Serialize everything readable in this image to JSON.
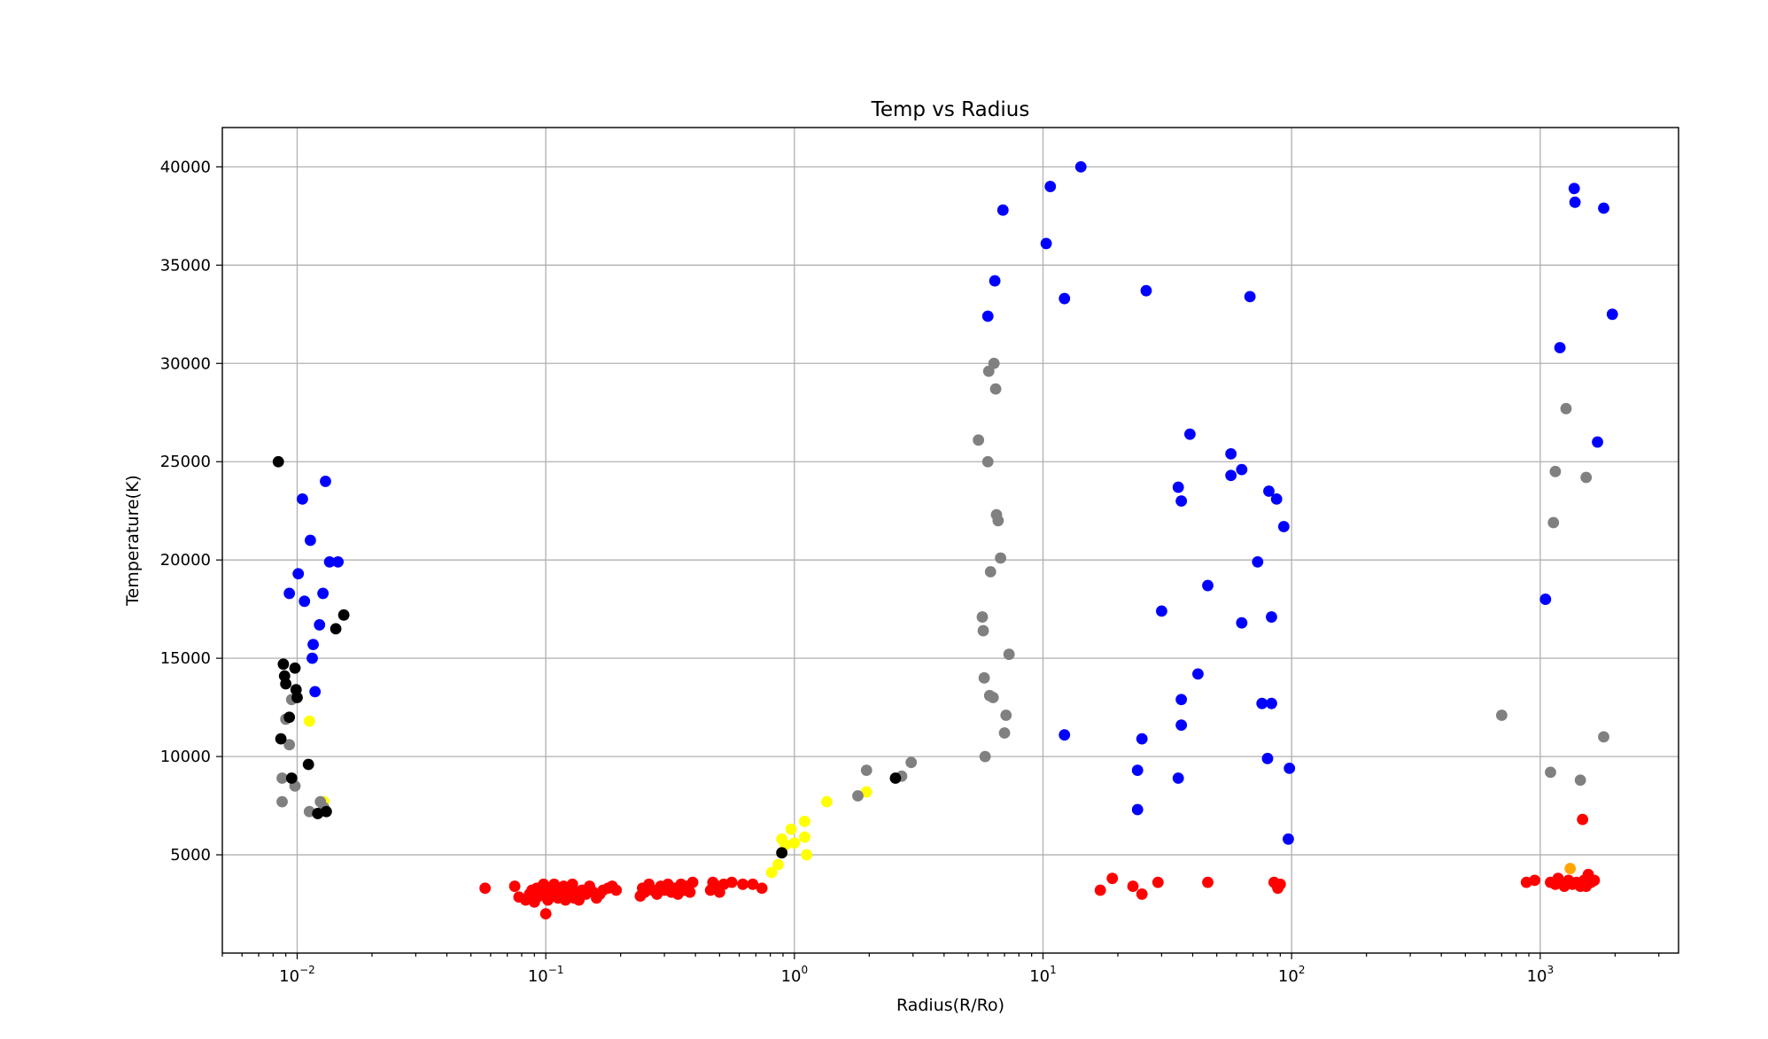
{
  "chart_data": {
    "type": "scatter",
    "title": "Temp vs Radius",
    "xlabel": "Radius(R/Ro)",
    "ylabel": "Temperature(K)",
    "xscale": "log",
    "xlim": [
      0.005,
      3600
    ],
    "ylim": [
      0,
      42000
    ],
    "x_ticks": [
      {
        "value": 0.01,
        "base": "10",
        "exp": "−2"
      },
      {
        "value": 0.1,
        "base": "10",
        "exp": "−1"
      },
      {
        "value": 1,
        "base": "10",
        "exp": "0"
      },
      {
        "value": 10,
        "base": "10",
        "exp": "1"
      },
      {
        "value": 100,
        "base": "10",
        "exp": "2"
      },
      {
        "value": 1000,
        "base": "10",
        "exp": "3"
      }
    ],
    "y_ticks": [
      {
        "value": 5000,
        "label": "5000"
      },
      {
        "value": 10000,
        "label": "10000"
      },
      {
        "value": 15000,
        "label": "15000"
      },
      {
        "value": 20000,
        "label": "20000"
      },
      {
        "value": 25000,
        "label": "25000"
      },
      {
        "value": 30000,
        "label": "30000"
      },
      {
        "value": 35000,
        "label": "35000"
      },
      {
        "value": 40000,
        "label": "40000"
      }
    ],
    "grid": true,
    "legend": "none",
    "series": [
      {
        "color": "#ff0000",
        "points": [
          [
            0.057,
            3300
          ],
          [
            0.075,
            3400
          ],
          [
            0.078,
            2850
          ],
          [
            0.083,
            2700
          ],
          [
            0.086,
            3000
          ],
          [
            0.088,
            3200
          ],
          [
            0.09,
            2600
          ],
          [
            0.092,
            3300
          ],
          [
            0.094,
            2900
          ],
          [
            0.096,
            3100
          ],
          [
            0.098,
            3500
          ],
          [
            0.1,
            2000
          ],
          [
            0.1,
            3000
          ],
          [
            0.102,
            2700
          ],
          [
            0.104,
            3300
          ],
          [
            0.106,
            2900
          ],
          [
            0.108,
            3500
          ],
          [
            0.11,
            3100
          ],
          [
            0.112,
            2800
          ],
          [
            0.115,
            3000
          ],
          [
            0.118,
            3400
          ],
          [
            0.12,
            2700
          ],
          [
            0.122,
            3200
          ],
          [
            0.125,
            3000
          ],
          [
            0.128,
            3500
          ],
          [
            0.13,
            2800
          ],
          [
            0.133,
            3100
          ],
          [
            0.136,
            2700
          ],
          [
            0.14,
            3200
          ],
          [
            0.145,
            3000
          ],
          [
            0.15,
            3400
          ],
          [
            0.155,
            3100
          ],
          [
            0.16,
            2800
          ],
          [
            0.165,
            3000
          ],
          [
            0.17,
            3200
          ],
          [
            0.178,
            3300
          ],
          [
            0.185,
            3400
          ],
          [
            0.192,
            3200
          ],
          [
            0.24,
            2900
          ],
          [
            0.245,
            3300
          ],
          [
            0.25,
            3100
          ],
          [
            0.26,
            3500
          ],
          [
            0.27,
            3200
          ],
          [
            0.28,
            3000
          ],
          [
            0.29,
            3400
          ],
          [
            0.3,
            3200
          ],
          [
            0.31,
            3500
          ],
          [
            0.32,
            3100
          ],
          [
            0.33,
            3300
          ],
          [
            0.34,
            3000
          ],
          [
            0.35,
            3500
          ],
          [
            0.36,
            3200
          ],
          [
            0.37,
            3400
          ],
          [
            0.38,
            3100
          ],
          [
            0.39,
            3600
          ],
          [
            0.46,
            3200
          ],
          [
            0.47,
            3600
          ],
          [
            0.49,
            3400
          ],
          [
            0.5,
            3100
          ],
          [
            0.52,
            3500
          ],
          [
            0.56,
            3600
          ],
          [
            0.62,
            3500
          ],
          [
            0.68,
            3500
          ],
          [
            0.74,
            3300
          ],
          [
            17,
            3200
          ],
          [
            19,
            3800
          ],
          [
            23,
            3400
          ],
          [
            25,
            3000
          ],
          [
            29,
            3600
          ],
          [
            46,
            3600
          ],
          [
            85,
            3600
          ],
          [
            88,
            3300
          ],
          [
            90,
            3500
          ],
          [
            880,
            3600
          ],
          [
            950,
            3700
          ],
          [
            1100,
            3600
          ],
          [
            1150,
            3500
          ],
          [
            1180,
            3800
          ],
          [
            1200,
            3600
          ],
          [
            1250,
            3400
          ],
          [
            1300,
            3700
          ],
          [
            1350,
            3500
          ],
          [
            1400,
            3600
          ],
          [
            1450,
            3400
          ],
          [
            1480,
            6800
          ],
          [
            1500,
            3700
          ],
          [
            1530,
            3400
          ],
          [
            1560,
            4000
          ],
          [
            1600,
            3600
          ],
          [
            1650,
            3700
          ]
        ]
      },
      {
        "color": "#ffa500",
        "points": [
          [
            1320,
            4300
          ]
        ]
      },
      {
        "color": "#ffff00",
        "points": [
          [
            0.0112,
            11800
          ],
          [
            0.0128,
            7700
          ],
          [
            0.81,
            4100
          ],
          [
            0.86,
            4500
          ],
          [
            0.89,
            5800
          ],
          [
            0.92,
            5500
          ],
          [
            0.97,
            6300
          ],
          [
            1.0,
            5600
          ],
          [
            1.1,
            5900
          ],
          [
            1.1,
            6700
          ],
          [
            1.12,
            5000
          ],
          [
            1.35,
            7700
          ],
          [
            1.95,
            8200
          ]
        ]
      },
      {
        "color": "#808080",
        "points": [
          [
            0.0087,
            8900
          ],
          [
            0.0087,
            7700
          ],
          [
            0.009,
            11900
          ],
          [
            0.0093,
            10600
          ],
          [
            0.0095,
            12900
          ],
          [
            0.0098,
            8500
          ],
          [
            0.0112,
            7200
          ],
          [
            0.0124,
            7700
          ],
          [
            0.0128,
            7400
          ],
          [
            1.8,
            8000
          ],
          [
            1.95,
            9300
          ],
          [
            2.7,
            9000
          ],
          [
            2.95,
            9700
          ],
          [
            5.5,
            26100
          ],
          [
            5.7,
            17100
          ],
          [
            5.75,
            16400
          ],
          [
            5.8,
            14000
          ],
          [
            5.85,
            10000
          ],
          [
            6.0,
            25000
          ],
          [
            6.05,
            29600
          ],
          [
            6.1,
            13100
          ],
          [
            6.15,
            19400
          ],
          [
            6.3,
            13000
          ],
          [
            6.35,
            30000
          ],
          [
            6.45,
            28700
          ],
          [
            6.5,
            22300
          ],
          [
            6.6,
            22000
          ],
          [
            6.75,
            20100
          ],
          [
            7.0,
            11200
          ],
          [
            7.1,
            12100
          ],
          [
            7.3,
            15200
          ],
          [
            700,
            12100
          ],
          [
            1100,
            9200
          ],
          [
            1130,
            21900
          ],
          [
            1150,
            24500
          ],
          [
            1270,
            27700
          ],
          [
            1450,
            8800
          ],
          [
            1530,
            24200
          ],
          [
            1800,
            11000
          ]
        ]
      },
      {
        "color": "#0000ff",
        "points": [
          [
            0.0093,
            18300
          ],
          [
            0.0101,
            19300
          ],
          [
            0.0105,
            23100
          ],
          [
            0.0107,
            17900
          ],
          [
            0.0113,
            21000
          ],
          [
            0.0115,
            15000
          ],
          [
            0.0116,
            15700
          ],
          [
            0.0118,
            13300
          ],
          [
            0.0123,
            16700
          ],
          [
            0.0127,
            18300
          ],
          [
            0.013,
            24000
          ],
          [
            0.0135,
            19900
          ],
          [
            0.0146,
            19900
          ],
          [
            6.0,
            32400
          ],
          [
            6.4,
            34200
          ],
          [
            6.9,
            37800
          ],
          [
            10.3,
            36100
          ],
          [
            10.7,
            39000
          ],
          [
            12.2,
            33300
          ],
          [
            12.2,
            11100
          ],
          [
            14.2,
            40000
          ],
          [
            24,
            9300
          ],
          [
            24,
            7300
          ],
          [
            25,
            10900
          ],
          [
            26,
            33700
          ],
          [
            30,
            17400
          ],
          [
            35,
            23700
          ],
          [
            35,
            8900
          ],
          [
            36,
            23000
          ],
          [
            36,
            12900
          ],
          [
            36,
            11600
          ],
          [
            39,
            26400
          ],
          [
            42,
            14200
          ],
          [
            46,
            18700
          ],
          [
            57,
            25400
          ],
          [
            57,
            24300
          ],
          [
            63,
            24600
          ],
          [
            63,
            16800
          ],
          [
            68,
            33400
          ],
          [
            73,
            19900
          ],
          [
            76,
            12700
          ],
          [
            80,
            9900
          ],
          [
            81,
            23500
          ],
          [
            83,
            17100
          ],
          [
            83,
            12700
          ],
          [
            87,
            23100
          ],
          [
            93,
            21700
          ],
          [
            97,
            5800
          ],
          [
            98,
            9400
          ],
          [
            1050,
            18000
          ],
          [
            1200,
            30800
          ],
          [
            1370,
            38900
          ],
          [
            1380,
            38200
          ],
          [
            1700,
            26000
          ],
          [
            1800,
            37900
          ],
          [
            1950,
            32500
          ]
        ]
      },
      {
        "color": "#000000",
        "points": [
          [
            0.0084,
            25000
          ],
          [
            0.0086,
            10900
          ],
          [
            0.0088,
            14700
          ],
          [
            0.0089,
            14100
          ],
          [
            0.009,
            13700
          ],
          [
            0.0093,
            12000
          ],
          [
            0.0095,
            8900
          ],
          [
            0.0098,
            14500
          ],
          [
            0.0099,
            13400
          ],
          [
            0.01,
            13000
          ],
          [
            0.0111,
            9600
          ],
          [
            0.0121,
            7100
          ],
          [
            0.0131,
            7200
          ],
          [
            0.0143,
            16500
          ],
          [
            0.0154,
            17200
          ],
          [
            0.89,
            5100
          ],
          [
            2.55,
            8900
          ]
        ]
      }
    ]
  }
}
